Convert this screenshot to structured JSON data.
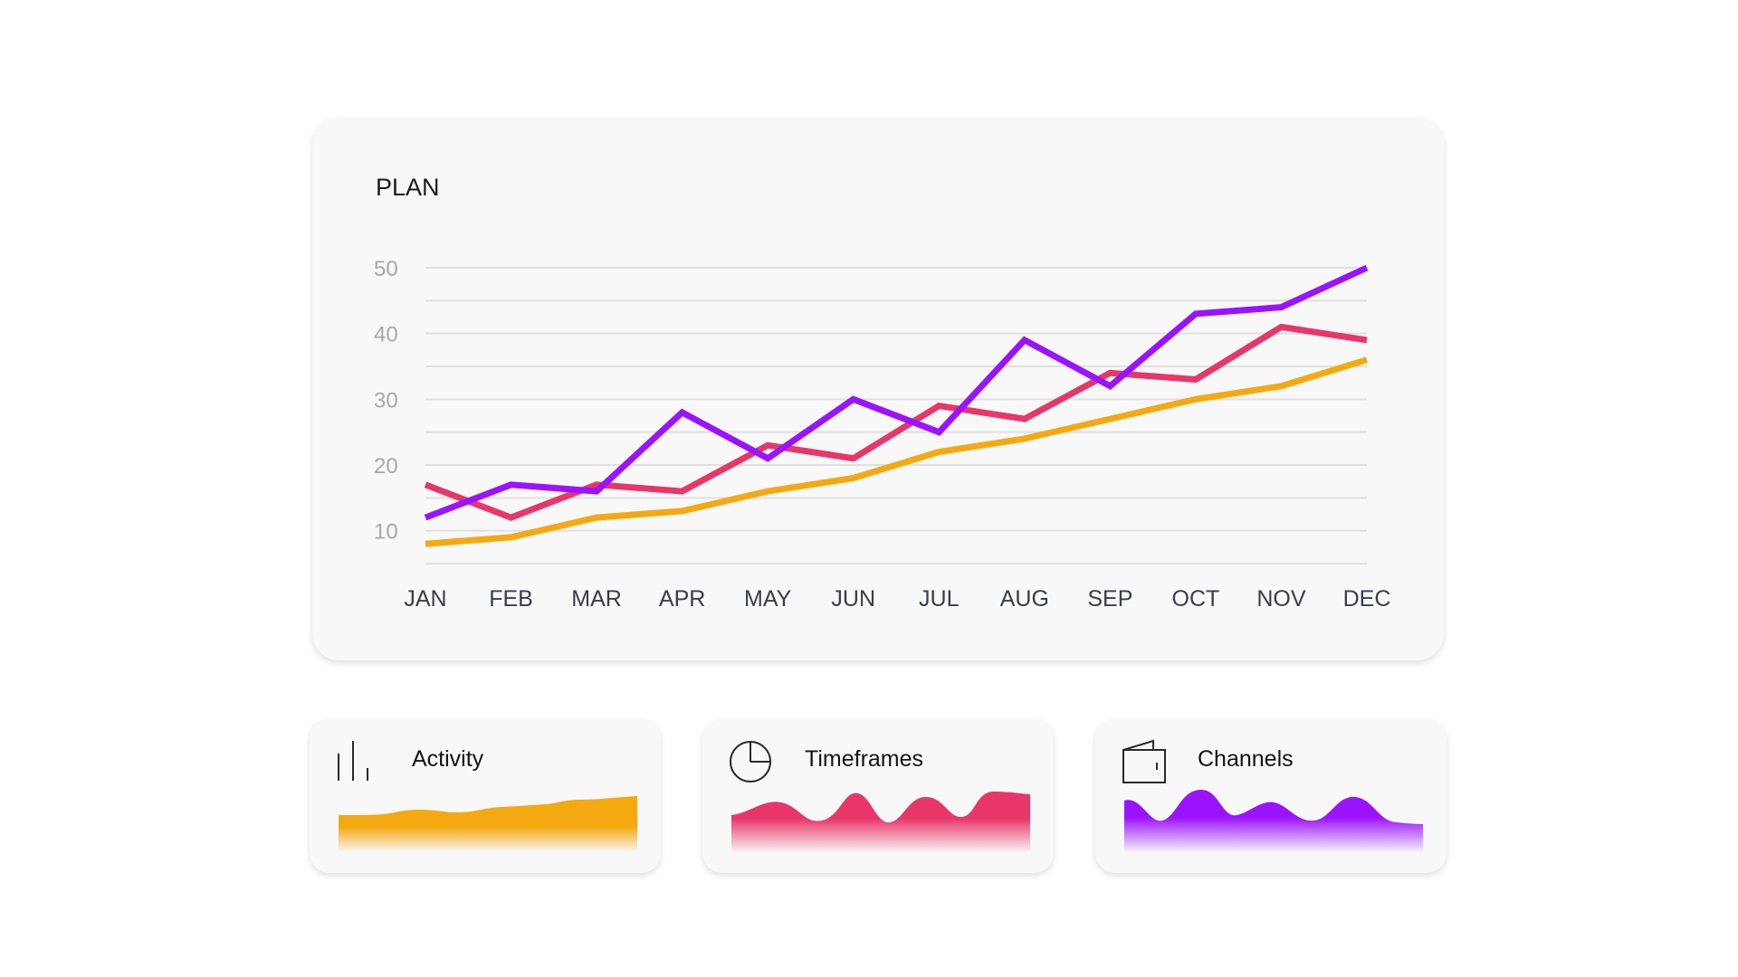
{
  "chart_data": {
    "type": "line",
    "title": "PLAN",
    "categories": [
      "JAN",
      "FEB",
      "MAR",
      "APR",
      "MAY",
      "JUN",
      "JUL",
      "AUG",
      "SEP",
      "OCT",
      "NOV",
      "DEC"
    ],
    "y_ticks": [
      10,
      20,
      30,
      40,
      50
    ],
    "ylim": [
      5,
      50
    ],
    "grid": true,
    "series": [
      {
        "color": "#e8366a",
        "values": [
          17,
          12,
          17,
          16,
          23,
          21,
          29,
          27,
          34,
          33,
          41,
          39
        ]
      },
      {
        "color": "#9b12ff",
        "values": [
          12,
          17,
          16,
          28,
          21,
          30,
          25,
          39,
          32,
          43,
          44,
          50
        ]
      },
      {
        "color": "#f5a911",
        "values": [
          8,
          9,
          12,
          13,
          16,
          18,
          22,
          24,
          27,
          30,
          32,
          36
        ]
      }
    ]
  },
  "cards": [
    {
      "label": "Activity",
      "icon": "bar-chart-icon",
      "color": "#f5a911"
    },
    {
      "label": "Timeframes",
      "icon": "pie-chart-icon",
      "color": "#e8366a"
    },
    {
      "label": "Channels",
      "icon": "wallet-icon",
      "color": "#9b12ff"
    }
  ]
}
